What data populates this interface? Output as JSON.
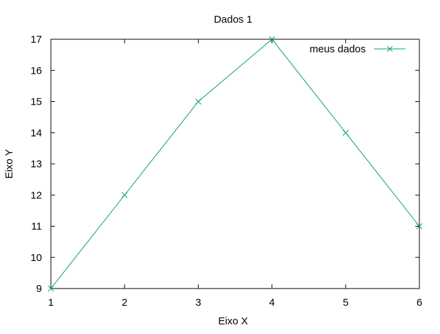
{
  "chart_data": {
    "type": "line",
    "title": "Dados 1",
    "xlabel": "Eixo X",
    "ylabel": "Eixo Y",
    "xlim": [
      1,
      6
    ],
    "ylim": [
      9,
      17
    ],
    "x_ticks": [
      "1",
      "2",
      "3",
      "4",
      "5",
      "6"
    ],
    "y_ticks": [
      "9",
      "10",
      "11",
      "12",
      "13",
      "14",
      "15",
      "16",
      "17"
    ],
    "grid": false,
    "legend_position": "top-right",
    "series": [
      {
        "name": "meus dados",
        "x": [
          1,
          2,
          3,
          4,
          5,
          6
        ],
        "y": [
          9,
          12,
          15,
          17,
          14,
          11
        ],
        "color": "#009e73",
        "marker": "x"
      }
    ]
  }
}
